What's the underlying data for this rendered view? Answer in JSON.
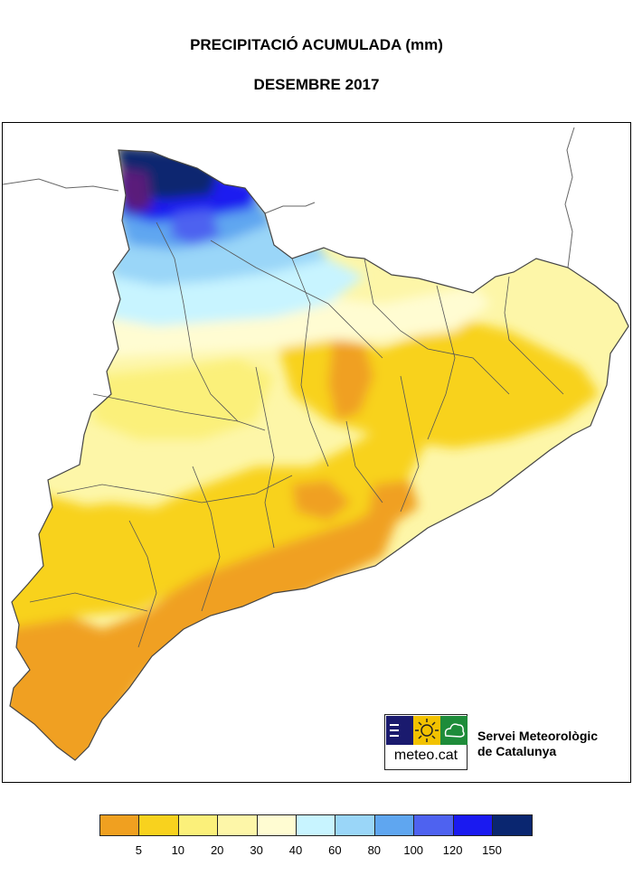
{
  "title": "PRECIPITACIÓ ACUMULADA (mm)",
  "subtitle": "DESEMBRE 2017",
  "logo": {
    "text": "meteo.cat",
    "colors": [
      "#1a1a6e",
      "#f2c200",
      "#1e8c3a"
    ]
  },
  "organization": [
    "Servei Meteorològic",
    "de Catalunya"
  ],
  "legend": {
    "colors": [
      "#f0a020",
      "#f8d21e",
      "#fbf07a",
      "#fdf6a8",
      "#fffcd2",
      "#c8f4ff",
      "#9ad6f8",
      "#5fa6f0",
      "#4e62f0",
      "#1a1af0",
      "#0a2670"
    ],
    "ticks": [
      "5",
      "10",
      "20",
      "30",
      "40",
      "60",
      "80",
      "100",
      "120",
      "150"
    ]
  },
  "region_colors": {
    "boundary": "#555555",
    "dark_purple": "#5a1a7a"
  }
}
